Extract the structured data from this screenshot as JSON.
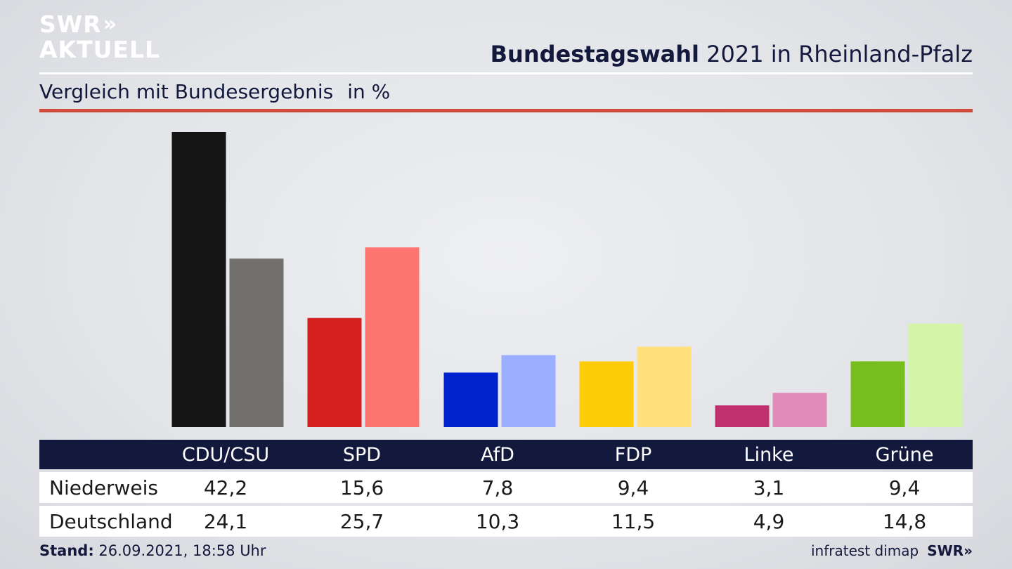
{
  "logo": {
    "line1": "SWR",
    "line1_chevrons": "»",
    "line2": "AKTUELL"
  },
  "header": {
    "title_bold": "Bundestagswahl",
    "title_rest": "2021 in Rheinland-Pfalz",
    "subtitle": "Vergleich mit Bundesergebnis",
    "unit": "in %"
  },
  "colors": {
    "title": "#13193d",
    "accent_line": "#d24a3c",
    "table_header_bg": "#13193d"
  },
  "chart_data": {
    "type": "bar",
    "categories": [
      "CDU/CSU",
      "SPD",
      "AfD",
      "FDP",
      "Linke",
      "Grüne"
    ],
    "series": [
      {
        "name": "Niederweis",
        "values": [
          42.2,
          15.6,
          7.8,
          9.4,
          3.1,
          9.4
        ],
        "colors": [
          "#141414",
          "#d41f1f",
          "#0022cc",
          "#ffcc0a",
          "#c0306f",
          "#78bd1e"
        ]
      },
      {
        "name": "Deutschland",
        "values": [
          24.1,
          25.7,
          10.3,
          11.5,
          4.9,
          14.8
        ],
        "colors": [
          "#72706e",
          "#ff7570",
          "#9caeff",
          "#ffe07a",
          "#e08cba",
          "#d4f5a8"
        ]
      }
    ],
    "ylim": [
      0,
      42.2
    ],
    "grid": false,
    "legend": "table-below"
  },
  "table": {
    "headers": [
      "CDU/CSU",
      "SPD",
      "AfD",
      "FDP",
      "Linke",
      "Grüne"
    ],
    "rows": [
      {
        "label": "Niederweis",
        "values": [
          "42,2",
          "15,6",
          "7,8",
          "9,4",
          "3,1",
          "9,4"
        ]
      },
      {
        "label": "Deutschland",
        "values": [
          "24,1",
          "25,7",
          "10,3",
          "11,5",
          "4,9",
          "14,8"
        ]
      }
    ]
  },
  "footer": {
    "stand_label": "Stand:",
    "stand_value": "26.09.2021, 18:58 Uhr",
    "source": "infratest dimap",
    "brand": "SWR",
    "brand_chevrons": "»"
  }
}
